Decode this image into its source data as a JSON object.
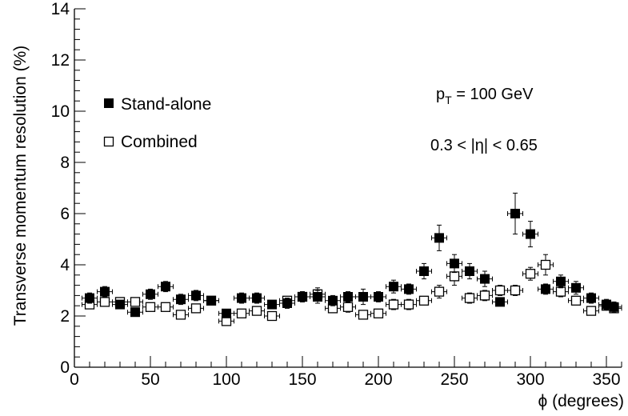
{
  "chart_data": {
    "type": "scatter",
    "xlabel": "ϕ (degrees)",
    "ylabel": "Transverse momentum resolution (%)",
    "xlim": [
      0,
      360
    ],
    "ylim": [
      0,
      14
    ],
    "x_ticks": [
      "0",
      "50",
      "100",
      "150",
      "200",
      "250",
      "300",
      "350"
    ],
    "y_ticks": [
      "0",
      "2",
      "4",
      "6",
      "8",
      "10",
      "12",
      "14"
    ],
    "grid": false,
    "legend_position": "upper-left",
    "annotations": {
      "pt_prefix": "p",
      "pt_sub": "T",
      "pt_rest": " = 100 GeV",
      "eta": "0.3 < |η| < 0.65"
    },
    "x": [
      10,
      20,
      30,
      40,
      50,
      60,
      70,
      80,
      90,
      100,
      110,
      120,
      130,
      140,
      150,
      160,
      170,
      180,
      190,
      200,
      210,
      220,
      230,
      240,
      250,
      260,
      270,
      280,
      290,
      300,
      310,
      320,
      330,
      340,
      350,
      355
    ],
    "x_err": 5,
    "series": [
      {
        "name": "Stand-alone",
        "marker": "filled-square",
        "color": "#000000",
        "values": [
          2.7,
          2.95,
          2.45,
          2.15,
          2.85,
          3.15,
          2.65,
          2.8,
          2.6,
          2.1,
          2.7,
          2.7,
          2.45,
          2.5,
          2.75,
          2.75,
          2.6,
          2.75,
          2.75,
          2.75,
          3.15,
          3.05,
          3.75,
          5.05,
          4.05,
          3.75,
          3.45,
          2.55,
          6.0,
          5.2,
          3.05,
          3.35,
          3.1,
          2.7,
          2.45,
          2.35
        ],
        "errors": [
          0.2,
          0.2,
          0.15,
          0.15,
          0.2,
          0.2,
          0.2,
          0.2,
          0.15,
          0.15,
          0.2,
          0.2,
          0.15,
          0.2,
          0.2,
          0.25,
          0.2,
          0.2,
          0.3,
          0.2,
          0.25,
          0.2,
          0.3,
          0.5,
          0.35,
          0.3,
          0.3,
          0.15,
          0.8,
          0.5,
          0.2,
          0.25,
          0.25,
          0.2,
          0.2,
          0.2
        ]
      },
      {
        "name": "Combined",
        "marker": "open-square",
        "color": "#000000",
        "values": [
          2.45,
          2.55,
          2.55,
          2.55,
          2.35,
          2.35,
          2.05,
          2.3,
          2.6,
          1.8,
          2.1,
          2.2,
          2.0,
          2.6,
          2.75,
          2.85,
          2.3,
          2.35,
          2.05,
          2.1,
          2.45,
          2.45,
          2.6,
          2.95,
          3.55,
          2.7,
          2.8,
          3.0,
          3.0,
          3.65,
          4.0,
          2.95,
          2.6,
          2.2,
          2.4,
          2.3
        ],
        "errors": [
          0.15,
          0.15,
          0.15,
          0.15,
          0.15,
          0.15,
          0.15,
          0.15,
          0.15,
          0.15,
          0.15,
          0.15,
          0.15,
          0.15,
          0.2,
          0.25,
          0.15,
          0.2,
          0.15,
          0.15,
          0.2,
          0.2,
          0.15,
          0.25,
          0.35,
          0.2,
          0.2,
          0.2,
          0.2,
          0.25,
          0.4,
          0.2,
          0.15,
          0.15,
          0.15,
          0.15
        ]
      }
    ]
  }
}
